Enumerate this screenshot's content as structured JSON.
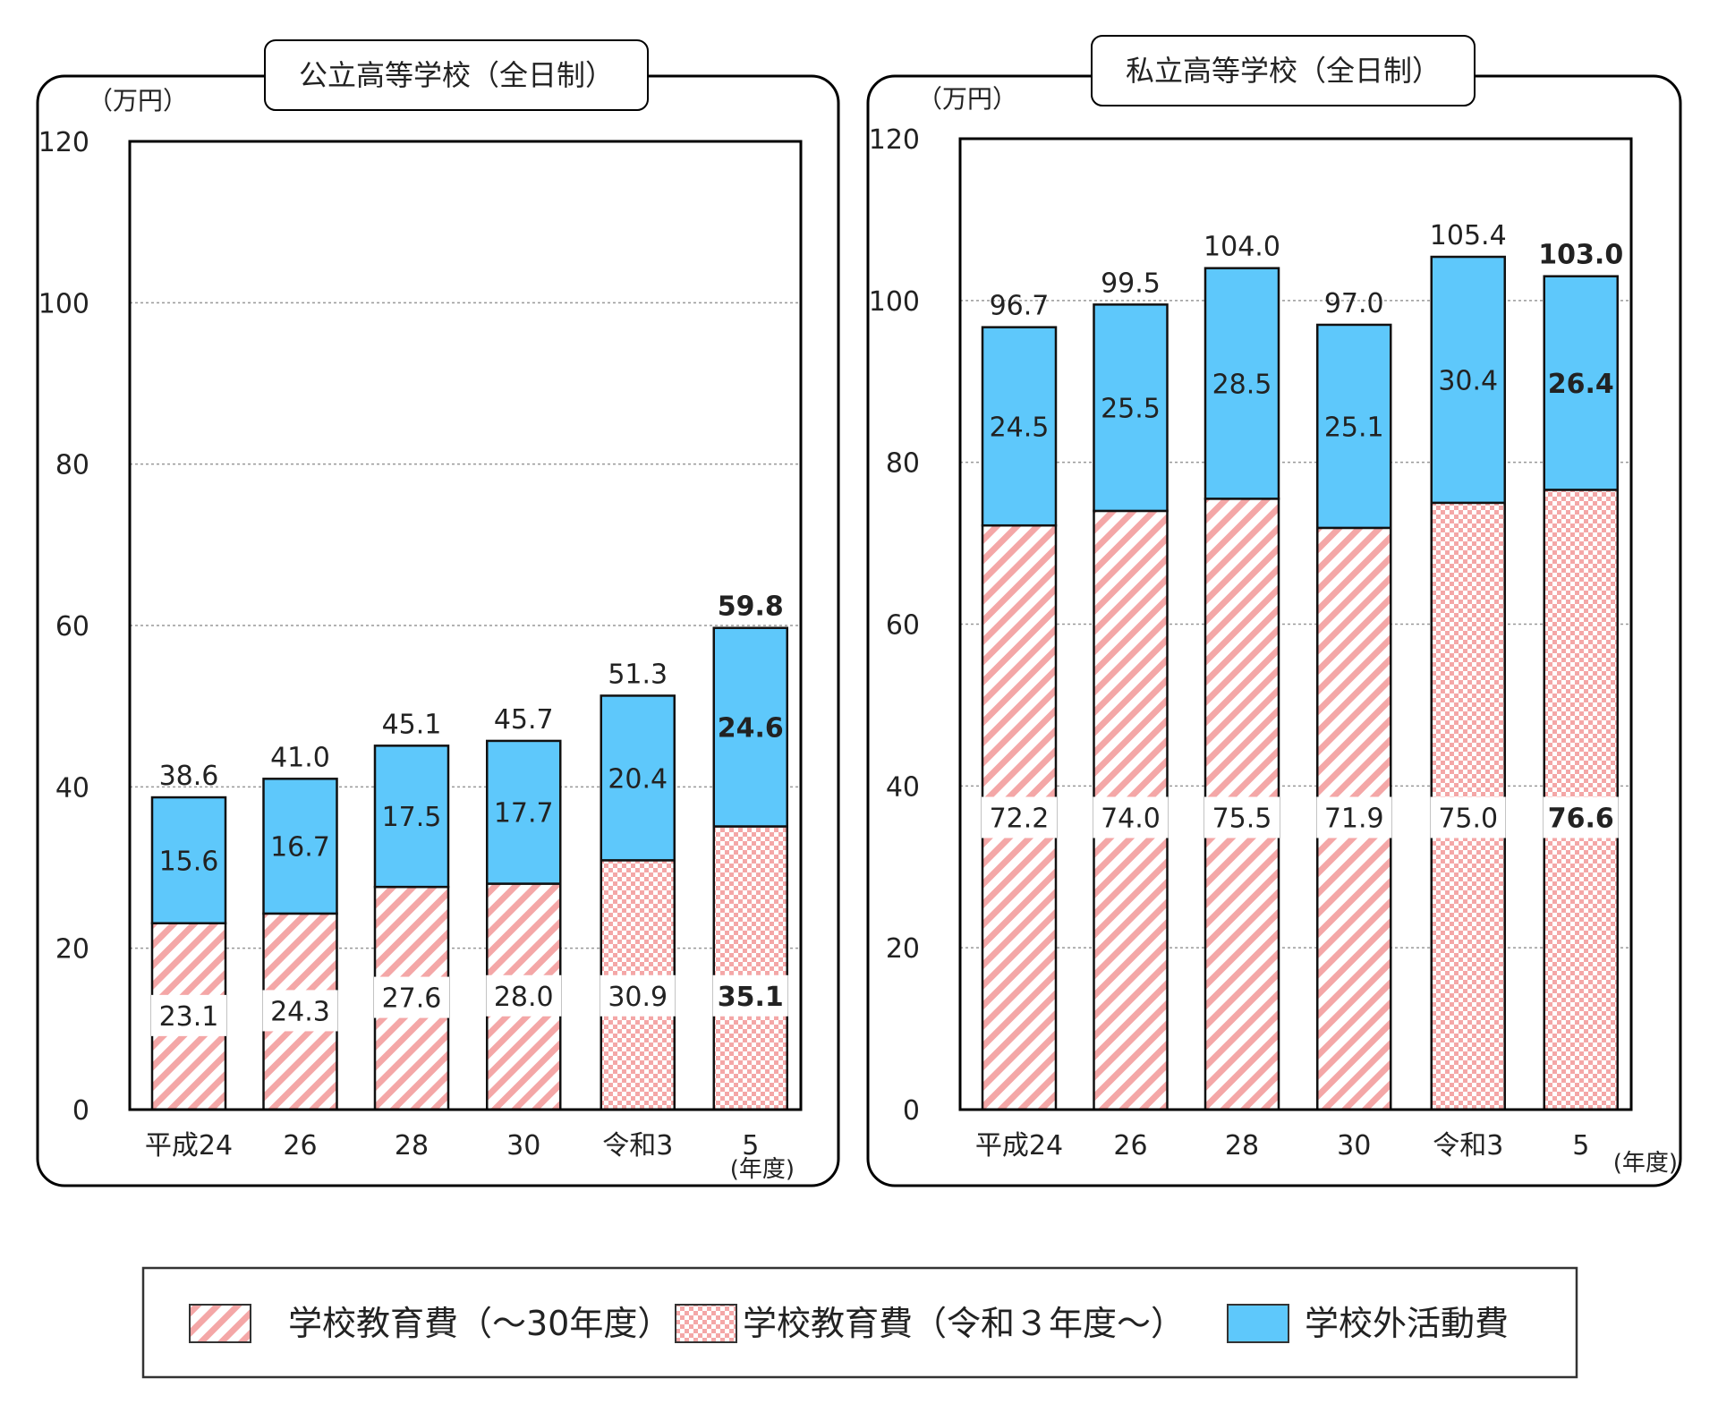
{
  "charts": [
    {
      "title": "公立高等学校（全日制）",
      "unit": "（万円）",
      "yticks": [
        "0",
        "20",
        "40",
        "60",
        "80",
        "100",
        "120"
      ],
      "x_unit": "(年度)",
      "bold_last": true
    },
    {
      "title": "私立高等学校（全日制）",
      "unit": "（万円）",
      "yticks": [
        "0",
        "20",
        "40",
        "60",
        "80",
        "100",
        "120"
      ],
      "x_unit": "(年度)",
      "bold_last": true
    }
  ],
  "legend": {
    "items": [
      {
        "label": "学校教育費（～30年度）",
        "pattern": "hatch"
      },
      {
        "label": "学校教育費（令和３年度～）",
        "pattern": "check"
      },
      {
        "label": "学校外活動費",
        "pattern": "solid"
      }
    ]
  },
  "colors": {
    "activity": "#5ec8fb",
    "education_pattern": "#f4a7a7",
    "frame": "#000000",
    "grid": "#999999"
  },
  "chart_data": [
    {
      "type": "bar",
      "stacked": true,
      "title": "公立高等学校（全日制）",
      "ylabel": "（万円）",
      "xlabel": "(年度)",
      "ylim": [
        0,
        120
      ],
      "categories": [
        "平成24",
        "26",
        "28",
        "30",
        "令和3",
        "5"
      ],
      "series": [
        {
          "name": "学校教育費",
          "values": [
            23.1,
            24.3,
            27.6,
            28.0,
            30.9,
            35.1
          ]
        },
        {
          "name": "学校外活動費",
          "values": [
            15.6,
            16.7,
            17.5,
            17.7,
            20.4,
            24.6
          ]
        }
      ],
      "education_pattern": [
        "hatch",
        "hatch",
        "hatch",
        "hatch",
        "check",
        "check"
      ],
      "totals": [
        38.6,
        41.0,
        45.1,
        45.7,
        51.3,
        59.8
      ],
      "grid": true
    },
    {
      "type": "bar",
      "stacked": true,
      "title": "私立高等学校（全日制）",
      "ylabel": "（万円）",
      "xlabel": "(年度)",
      "ylim": [
        0,
        120
      ],
      "categories": [
        "平成24",
        "26",
        "28",
        "30",
        "令和3",
        "5"
      ],
      "series": [
        {
          "name": "学校教育費",
          "values": [
            72.2,
            74.0,
            75.5,
            71.9,
            75.0,
            76.6
          ]
        },
        {
          "name": "学校外活動費",
          "values": [
            24.5,
            25.5,
            28.5,
            25.1,
            30.4,
            26.4
          ]
        }
      ],
      "education_pattern": [
        "hatch",
        "hatch",
        "hatch",
        "hatch",
        "check",
        "check"
      ],
      "totals": [
        96.7,
        99.5,
        104.0,
        97.0,
        105.4,
        103.0
      ],
      "grid": true
    }
  ]
}
